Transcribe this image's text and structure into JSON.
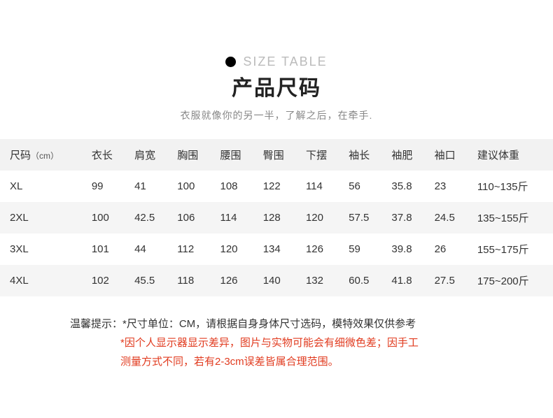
{
  "header": {
    "eng_label": "SIZE TABLE",
    "title": "产品尺码",
    "subtitle": "衣服就像你的另一半，了解之后，在牵手."
  },
  "table": {
    "columns": [
      {
        "label": "尺码",
        "unit": "（cm）"
      },
      {
        "label": "衣长",
        "unit": ""
      },
      {
        "label": "肩宽",
        "unit": ""
      },
      {
        "label": "胸围",
        "unit": ""
      },
      {
        "label": "腰围",
        "unit": ""
      },
      {
        "label": "臀围",
        "unit": ""
      },
      {
        "label": "下摆",
        "unit": ""
      },
      {
        "label": "袖长",
        "unit": ""
      },
      {
        "label": "袖肥",
        "unit": ""
      },
      {
        "label": "袖口",
        "unit": ""
      },
      {
        "label": "建议体重",
        "unit": ""
      }
    ],
    "rows": [
      [
        "XL",
        "99",
        "41",
        "100",
        "108",
        "122",
        "114",
        "56",
        "35.8",
        "23",
        "110~135斤"
      ],
      [
        "2XL",
        "100",
        "42.5",
        "106",
        "114",
        "128",
        "120",
        "57.5",
        "37.8",
        "24.5",
        "135~155斤"
      ],
      [
        "3XL",
        "101",
        "44",
        "112",
        "120",
        "134",
        "126",
        "59",
        "39.8",
        "26",
        "155~175斤"
      ],
      [
        "4XL",
        "102",
        "45.5",
        "118",
        "126",
        "140",
        "132",
        "60.5",
        "41.8",
        "27.5",
        "175~200斤"
      ]
    ],
    "header_bg": "#f2f2f2",
    "row_alt_bg": "#f5f5f5",
    "row_bg": "#ffffff",
    "text_color": "#333333"
  },
  "notes": {
    "line1": "温馨提示：*尺寸单位：CM，请根据自身身体尺寸选码，模特效果仅供参考",
    "line2": "*因个人显示器显示差异，图片与实物可能会有细微色差；因手工",
    "line3": "测量方式不同，若有2-3cm误差皆属合理范围。",
    "red_color": "#e13b1f"
  }
}
